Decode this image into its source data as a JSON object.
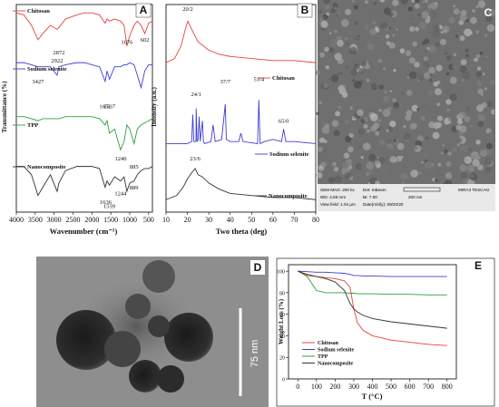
{
  "chart_data": [
    {
      "type": "line",
      "panel": "A",
      "ylabel": "Transmittance (%)",
      "xlabel": "Wavenumber (cm⁻¹)",
      "xlim": [
        4000,
        400
      ],
      "xticks": [
        4000,
        3500,
        3000,
        2500,
        2000,
        1500,
        1000,
        500
      ],
      "ylim": [
        0,
        100
      ],
      "x": [
        4000,
        3800,
        3600,
        3427,
        3300,
        3100,
        2922,
        2872,
        2700,
        2400,
        2200,
        2000,
        1800,
        1651,
        1600,
        1537,
        1400,
        1244,
        1150,
        1076,
        1000,
        885,
        800,
        700,
        602,
        500,
        400
      ],
      "series": [
        {
          "name": "Chitosan",
          "color": "#e8413c",
          "values": [
            96,
            95,
            90,
            83,
            86,
            90,
            88,
            89,
            93,
            95,
            96,
            96,
            95,
            91,
            93,
            92,
            93,
            92,
            90,
            80,
            85,
            90,
            92,
            90,
            86,
            91,
            92
          ]
        },
        {
          "name": "Sodium selenite",
          "color": "#3d3dd6",
          "values": [
            72,
            72,
            71,
            70,
            70,
            70,
            66,
            70,
            71,
            72,
            72,
            71,
            70,
            63,
            68,
            64,
            70,
            70,
            71,
            71,
            72,
            71,
            66,
            60,
            68,
            71,
            71
          ]
        },
        {
          "name": "TPP",
          "color": "#2e9e3a",
          "values": [
            46,
            46,
            45,
            44,
            45,
            45,
            45,
            45,
            46,
            46,
            46,
            46,
            45,
            42,
            44,
            38,
            40,
            30,
            34,
            42,
            40,
            33,
            40,
            42,
            43,
            44,
            45
          ]
        },
        {
          "name": "Nanocomposite",
          "color": "#333333",
          "values": [
            22,
            22,
            18,
            8,
            12,
            18,
            10,
            14,
            20,
            22,
            22,
            22,
            21,
            12,
            15,
            13,
            17,
            15,
            17,
            10,
            14,
            15,
            18,
            20,
            21,
            21,
            22
          ]
        }
      ],
      "annotations": [
        {
          "x": 3427,
          "y": 62,
          "text": "3427"
        },
        {
          "x": 2872,
          "y": 76,
          "text": "2872"
        },
        {
          "x": 2922,
          "y": 72,
          "text": "2922"
        },
        {
          "x": 1076,
          "y": 81,
          "text": "1076"
        },
        {
          "x": 602,
          "y": 82,
          "text": "602"
        },
        {
          "x": 1651,
          "y": 50,
          "text": "1651"
        },
        {
          "x": 1537,
          "y": 50,
          "text": "1537"
        },
        {
          "x": 1240,
          "y": 25,
          "text": "1240"
        },
        {
          "x": 885,
          "y": 21,
          "text": "885"
        },
        {
          "x": 1636,
          "y": 4,
          "text": "1636"
        },
        {
          "x": 1539,
          "y": 2,
          "text": "1539"
        },
        {
          "x": 1244,
          "y": 8,
          "text": "1244"
        },
        {
          "x": 889,
          "y": 11,
          "text": "889"
        }
      ]
    },
    {
      "type": "line",
      "panel": "B",
      "ylabel": "Intensity (a.u.)",
      "xlabel": "Two theta (deg)",
      "xlim": [
        10,
        80
      ],
      "xticks": [
        10,
        20,
        30,
        40,
        50,
        60,
        70,
        80
      ],
      "ylim": [
        0,
        100
      ],
      "series": [
        {
          "name": "Chitosan",
          "color": "#e8413c",
          "x": [
            10,
            14,
            17,
            19,
            20.2,
            22,
            25,
            30,
            35,
            40,
            50,
            60,
            70,
            80
          ],
          "values": [
            72,
            74,
            80,
            88,
            92,
            88,
            82,
            78,
            76,
            75,
            74,
            73,
            73,
            72
          ]
        },
        {
          "name": "Sodium selenite",
          "color": "#3d3dd6",
          "x": [
            10,
            20,
            22,
            22.5,
            23,
            24,
            24.1,
            24.5,
            25,
            25.5,
            26,
            27,
            27.5,
            28,
            31,
            32,
            33,
            36,
            37.3,
            37.7,
            38.2,
            40,
            44,
            45,
            46,
            52.8,
            53.4,
            54,
            56,
            60,
            64,
            65,
            66,
            70,
            80
          ],
          "values": [
            33,
            33,
            34,
            47,
            34,
            34,
            50,
            34,
            35,
            46,
            34,
            44,
            34,
            33,
            34,
            42,
            34,
            35,
            48,
            52,
            35,
            34,
            34,
            38,
            34,
            33,
            54,
            33,
            34,
            35,
            34,
            40,
            34,
            34,
            33
          ]
        },
        {
          "name": "Nanocomposite",
          "color": "#333333",
          "x": [
            10,
            15,
            18,
            20,
            22,
            23.6,
            25,
            27,
            30,
            35,
            40,
            50,
            60,
            70,
            80
          ],
          "values": [
            6,
            8,
            12,
            16,
            19,
            21,
            18,
            17,
            14,
            11,
            9,
            8,
            7,
            7,
            6
          ]
        }
      ],
      "annotations": [
        {
          "x": 20.2,
          "y": 97,
          "text": "20/2"
        },
        {
          "x": 24.1,
          "y": 56,
          "text": "24/1"
        },
        {
          "x": 37.7,
          "y": 62,
          "text": "37/7"
        },
        {
          "x": 53.4,
          "y": 63,
          "text": "53/4"
        },
        {
          "x": 65,
          "y": 43,
          "text": "65/0"
        },
        {
          "x": 23.6,
          "y": 25,
          "text": "23/6"
        }
      ]
    },
    {
      "type": "line",
      "panel": "E",
      "ylabel": "Weight Loss (%)",
      "xlabel": "T (°C)",
      "xlim": [
        -50,
        850
      ],
      "xticks": [
        0,
        100,
        200,
        300,
        400,
        500,
        600,
        700,
        800
      ],
      "ylim": [
        0,
        106
      ],
      "yticks": [
        0,
        20,
        40,
        60,
        80,
        100
      ],
      "x": [
        0,
        50,
        100,
        150,
        200,
        250,
        280,
        300,
        320,
        350,
        400,
        500,
        600,
        700,
        800
      ],
      "series": [
        {
          "name": "Chitosan",
          "color": "#e8413c",
          "values": [
            100,
            96,
            95,
            94,
            93,
            91,
            85,
            65,
            52,
            45,
            40,
            36,
            34,
            32,
            31
          ]
        },
        {
          "name": "Sodium selenite",
          "color": "#3d3dd6",
          "values": [
            100,
            99.5,
            99,
            99,
            98.5,
            98,
            97,
            96,
            96,
            95.5,
            95.5,
            95,
            95,
            95,
            95
          ]
        },
        {
          "name": "TPP",
          "color": "#2e9e3a",
          "values": [
            100,
            95,
            82,
            80,
            80,
            80,
            79.5,
            79.5,
            79,
            79,
            79,
            78.5,
            78.5,
            78,
            78
          ]
        },
        {
          "name": "Nanocomposite",
          "color": "#333333",
          "values": [
            100,
            97,
            95,
            93,
            90,
            82,
            70,
            65,
            62,
            59,
            56,
            53,
            51,
            49,
            47
          ]
        }
      ]
    }
  ],
  "images": [
    {
      "panel": "C",
      "info": [
        "SEM MAG: 200 kx",
        "Det: InBeam",
        "WD: 4.59 mm",
        "BI: 7.00",
        "200 nm",
        "View field: 1.04 μm",
        "Date(m/d/y): 09/20/20",
        "MIRA3 TESCAN"
      ]
    },
    {
      "panel": "D",
      "scale_bar": "75 nm"
    }
  ]
}
